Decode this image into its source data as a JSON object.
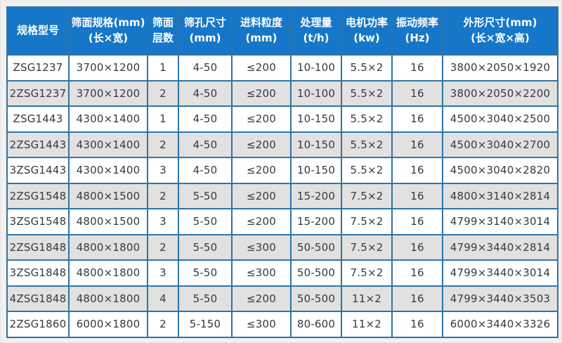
{
  "page": {
    "background_color": "#f2f1f0"
  },
  "table": {
    "header_bg_color": "#1677c8",
    "header_text_color": "#ffffff",
    "border_color": "#2e74a8",
    "row_alt_bg_color": "#e2e1e0",
    "cell_text_color": "#38393d",
    "columns": [
      {
        "id": "model",
        "line1": "规格型号",
        "line2": ""
      },
      {
        "id": "screen-size",
        "line1": "筛面规格(mm)",
        "line2": "(长×宽)"
      },
      {
        "id": "layers",
        "line1": "筛面",
        "line2": "层数"
      },
      {
        "id": "hole-size",
        "line1": "筛孔尺寸",
        "line2": "(mm)"
      },
      {
        "id": "feed-size",
        "line1": "进料粒度",
        "line2": "(mm)"
      },
      {
        "id": "capacity",
        "line1": "处理量",
        "line2": "(t/h)"
      },
      {
        "id": "motor-power",
        "line1": "电机功率",
        "line2": "(kw)"
      },
      {
        "id": "frequency",
        "line1": "振动频率",
        "line2": "(Hz)"
      },
      {
        "id": "dimensions",
        "line1": "外形尺寸(mm)",
        "line2": "(长×宽×高)"
      }
    ],
    "rows": [
      [
        "ZSG1237",
        "3700×1200",
        "1",
        "4-50",
        "≤200",
        "10-100",
        "5.5×2",
        "16",
        "3800×2050×1920"
      ],
      [
        "2ZSG1237",
        "3700×1200",
        "2",
        "4-50",
        "≤200",
        "10-100",
        "5.5×2",
        "16",
        "3800×2050×2200"
      ],
      [
        "ZSG1443",
        "4300×1400",
        "1",
        "4-50",
        "≤200",
        "10-150",
        "5.5×2",
        "16",
        "4500×3040×2500"
      ],
      [
        "2ZSG1443",
        "4300×1400",
        "2",
        "4-50",
        "≤200",
        "10-150",
        "5.5×2",
        "16",
        "4500×3040×2700"
      ],
      [
        "3ZSG1443",
        "4300×1400",
        "3",
        "4-50",
        "≤200",
        "10-150",
        "5.5×2",
        "16",
        "4500×3040×2820"
      ],
      [
        "2ZSG1548",
        "4800×1500",
        "2",
        "5-50",
        "≤200",
        "15-200",
        "7.5×2",
        "16",
        "4800×3140×2814"
      ],
      [
        "3ZSG1548",
        "4800×1500",
        "3",
        "5-50",
        "≤200",
        "15-200",
        "7.5×2",
        "16",
        "4799×3140×3014"
      ],
      [
        "2ZSG1848",
        "4800×1800",
        "2",
        "5-50",
        "≤300",
        "50-500",
        "7.5×2",
        "16",
        "4799×3440×2814"
      ],
      [
        "3ZSG1848",
        "4800×1800",
        "3",
        "5-50",
        "≤300",
        "50-500",
        "7.5×2",
        "16",
        "4799×3440×3014"
      ],
      [
        "4ZSG1848",
        "4800×1800",
        "4",
        "5-50",
        "≤200",
        "50-500",
        "11×2",
        "16",
        "4799×3440×3503"
      ],
      [
        "2ZSG1860",
        "6000×1800",
        "2",
        "5-150",
        "≤300",
        "80-600",
        "11×2",
        "16",
        "6000×3440×3326"
      ]
    ]
  }
}
